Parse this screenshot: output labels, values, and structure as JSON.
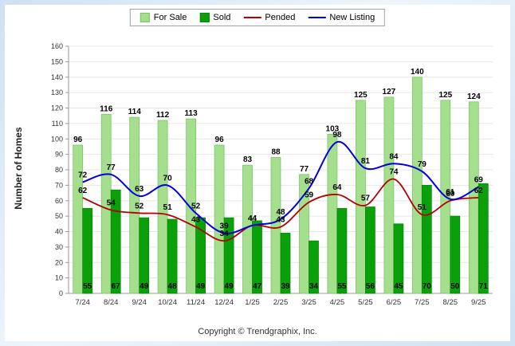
{
  "colors": {
    "frame": "#cfe1f2",
    "grid": "#e6e6e6",
    "axis": "#999999"
  },
  "ylabel_text": "Number of Homes",
  "footer": {
    "copyright": "Copyright © Trendgraphix, Inc."
  },
  "chart_data": {
    "type": "bar",
    "subtype": "grouped-bars-with-smooth-lines",
    "title": "",
    "xlabel": "",
    "ylabel": "Number of Homes",
    "ylim": [
      0,
      160
    ],
    "ytick_step": 10,
    "grid": true,
    "legend_position": "top-center",
    "categories": [
      "7/24",
      "8/24",
      "9/24",
      "10/24",
      "11/24",
      "12/24",
      "1/25",
      "2/25",
      "3/25",
      "4/25",
      "5/25",
      "6/25",
      "7/25",
      "8/25",
      "9/25"
    ],
    "series": [
      {
        "name": "For Sale",
        "kind": "bar",
        "color": "#a5df8e",
        "border": "#74c465",
        "values": [
          96,
          116,
          114,
          112,
          113,
          96,
          83,
          88,
          77,
          103,
          125,
          127,
          140,
          125,
          124
        ]
      },
      {
        "name": "Sold",
        "kind": "bar",
        "color": "#0aa00a",
        "border": "#078507",
        "values": [
          55,
          67,
          49,
          48,
          49,
          49,
          47,
          39,
          34,
          55,
          56,
          45,
          70,
          50,
          71
        ]
      },
      {
        "name": "Pended",
        "kind": "line",
        "color": "#b30000",
        "values": [
          62,
          54,
          52,
          51,
          43,
          34,
          44,
          43,
          59,
          64,
          57,
          74,
          51,
          60,
          62
        ]
      },
      {
        "name": "New Listing",
        "kind": "line",
        "color": "#0000e0",
        "values": [
          72,
          77,
          63,
          70,
          52,
          39,
          44,
          48,
          68,
          98,
          81,
          84,
          79,
          61,
          69
        ]
      }
    ]
  }
}
